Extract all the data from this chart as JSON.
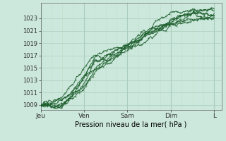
{
  "xlabel": "Pression niveau de la mer( hPa )",
  "bg_color": "#cce8dc",
  "grid_color_major": "#aacebb",
  "grid_color_minor": "#c0deca",
  "line_color": "#1a5c2a",
  "x_ticks_labels": [
    "Jeu",
    "Ven",
    "Sam",
    "Dim",
    "L"
  ],
  "x_ticks_pos": [
    0,
    24,
    48,
    72,
    96
  ],
  "y_ticks": [
    1009,
    1011,
    1013,
    1015,
    1017,
    1019,
    1021,
    1023
  ],
  "ylim": [
    1008.2,
    1025.5
  ],
  "xlim": [
    0,
    100
  ]
}
